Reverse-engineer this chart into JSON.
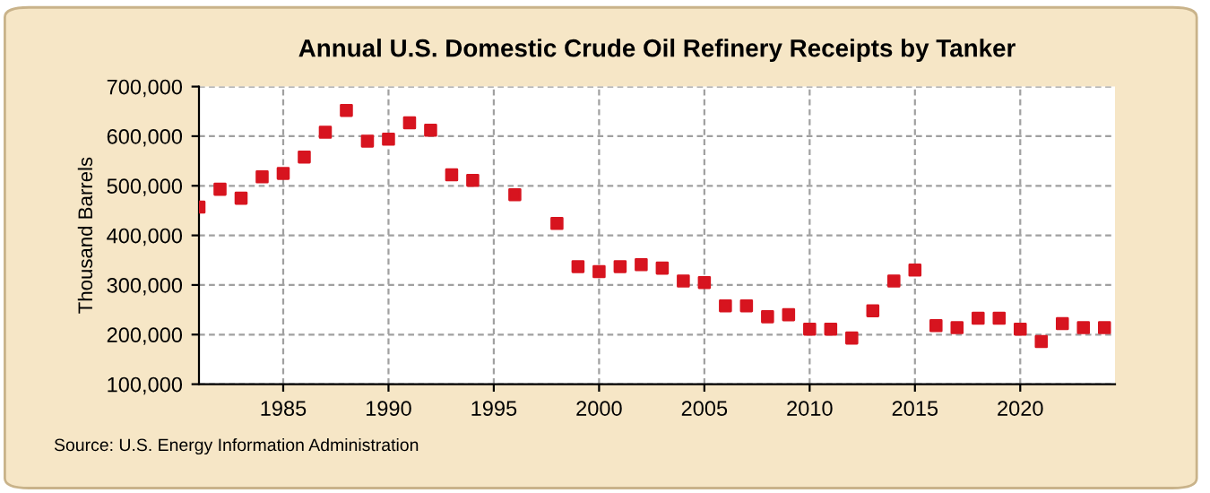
{
  "chart_data": {
    "type": "scatter",
    "title": "Annual U.S. Domestic Crude Oil Refinery Receipts by Tanker",
    "ylabel": "Thousand Barrels",
    "x": [
      1981,
      1982,
      1983,
      1984,
      1985,
      1986,
      1987,
      1988,
      1989,
      1990,
      1991,
      1992,
      1993,
      1994,
      1996,
      1998,
      1999,
      2000,
      2001,
      2002,
      2003,
      2004,
      2005,
      2006,
      2007,
      2008,
      2009,
      2010,
      2011,
      2012,
      2013,
      2014,
      2015,
      2016,
      2017,
      2018,
      2019,
      2020,
      2021,
      2022,
      2023,
      2024
    ],
    "series": [
      {
        "color": "#d7141f",
        "values": [
          457000,
          493000,
          475000,
          518000,
          525000,
          558000,
          608000,
          652000,
          590000,
          594000,
          627000,
          612000,
          522000,
          511000,
          482000,
          424000,
          337000,
          327000,
          337000,
          341000,
          334000,
          308000,
          305000,
          258000,
          258000,
          236000,
          240000,
          211000,
          211000,
          193000,
          248000,
          308000,
          330000,
          218000,
          214000,
          233000,
          233000,
          211000,
          186000,
          222000,
          214000,
          214000
        ]
      }
    ],
    "xlim": [
      1981,
      2024.5
    ],
    "xticks": [
      1985,
      1990,
      1995,
      2000,
      2005,
      2010,
      2015,
      2020
    ],
    "ylim": [
      100000,
      700000
    ],
    "yticks": [
      {
        "value": 100000,
        "label": "100,000"
      },
      {
        "value": 200000,
        "label": "200,000"
      },
      {
        "value": 300000,
        "label": "300,000"
      },
      {
        "value": 400000,
        "label": "400,000"
      },
      {
        "value": 500000,
        "label": "500,000"
      },
      {
        "value": 600000,
        "label": "600,000"
      },
      {
        "value": 700000,
        "label": "700,000"
      }
    ],
    "grid": true,
    "marker": "square",
    "legend": false,
    "annotations": [
      "Source: U.S. Energy Information Administration"
    ]
  }
}
